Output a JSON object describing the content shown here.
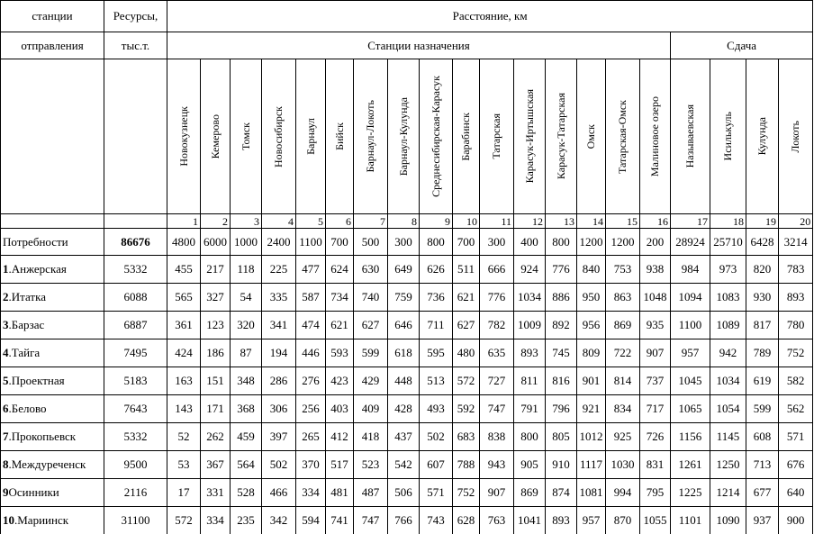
{
  "header": {
    "station": [
      "станции",
      "отправления"
    ],
    "resources": [
      "Ресурсы,",
      "тыс.т."
    ],
    "distance": "Расстояние, км",
    "destinations": "Станции назначения",
    "delivery": "Сдача"
  },
  "columns": [
    {
      "name": "Новокузнецк",
      "no": 1
    },
    {
      "name": "Кемерово",
      "no": 2
    },
    {
      "name": "Томск",
      "no": 3
    },
    {
      "name": "Новосибирск",
      "no": 4
    },
    {
      "name": "Барнаул",
      "no": 5
    },
    {
      "name": "Бийск",
      "no": 6
    },
    {
      "name": "Барнаул-Локоть",
      "no": 7
    },
    {
      "name": "Барнаул-Кулунда",
      "no": 8
    },
    {
      "name": "Среднесибирская-Карасук",
      "no": 9
    },
    {
      "name": "Барабинск",
      "no": 10
    },
    {
      "name": "Татарская",
      "no": 11
    },
    {
      "name": "Карасук-Иртышская",
      "no": 12
    },
    {
      "name": "Карасук-Татарская",
      "no": 13
    },
    {
      "name": "Омск",
      "no": 14
    },
    {
      "name": "Татарская-Омск",
      "no": 15
    },
    {
      "name": "Малиновое озеро",
      "no": 16
    },
    {
      "name": "Называевская",
      "no": 17
    },
    {
      "name": "Исилькуль",
      "no": 18
    },
    {
      "name": "Кулунда",
      "no": 19
    },
    {
      "name": "Локоть",
      "no": 20
    }
  ],
  "demand": {
    "label": "Потребности",
    "resources": 86676,
    "values": [
      4800,
      6000,
      1000,
      2400,
      1100,
      700,
      500,
      300,
      800,
      700,
      300,
      400,
      800,
      1200,
      1200,
      200,
      28924,
      25710,
      6428,
      3214
    ]
  },
  "rows": [
    {
      "num": "1",
      "name": ".Анжерская",
      "resources": 5332,
      "values": [
        455,
        217,
        118,
        225,
        477,
        624,
        630,
        649,
        626,
        511,
        666,
        924,
        776,
        840,
        753,
        938,
        984,
        973,
        820,
        783
      ]
    },
    {
      "num": "2",
      "name": ".Итатка",
      "resources": 6088,
      "values": [
        565,
        327,
        54,
        335,
        587,
        734,
        740,
        759,
        736,
        621,
        776,
        1034,
        886,
        950,
        863,
        1048,
        1094,
        1083,
        930,
        893
      ]
    },
    {
      "num": "3",
      "name": ".Барзас",
      "resources": 6887,
      "values": [
        361,
        123,
        320,
        341,
        474,
        621,
        627,
        646,
        711,
        627,
        782,
        1009,
        892,
        956,
        869,
        935,
        1100,
        1089,
        817,
        780
      ]
    },
    {
      "num": "4",
      "name": ".Тайга",
      "resources": 7495,
      "values": [
        424,
        186,
        87,
        194,
        446,
        593,
        599,
        618,
        595,
        480,
        635,
        893,
        745,
        809,
        722,
        907,
        957,
        942,
        789,
        752
      ]
    },
    {
      "num": "5",
      "name": ".Проектная",
      "resources": 5183,
      "values": [
        163,
        151,
        348,
        286,
        276,
        423,
        429,
        448,
        513,
        572,
        727,
        811,
        816,
        901,
        814,
        737,
        1045,
        1034,
        619,
        582
      ]
    },
    {
      "num": "6",
      "name": ".Белово",
      "resources": 7643,
      "values": [
        143,
        171,
        368,
        306,
        256,
        403,
        409,
        428,
        493,
        592,
        747,
        791,
        796,
        921,
        834,
        717,
        1065,
        1054,
        599,
        562
      ]
    },
    {
      "num": "7",
      "name": ".Прокопьевск",
      "resources": 5332,
      "values": [
        52,
        262,
        459,
        397,
        265,
        412,
        418,
        437,
        502,
        683,
        838,
        800,
        805,
        1012,
        925,
        726,
        1156,
        1145,
        608,
        571
      ]
    },
    {
      "num": "8",
      "name": ".Междуреченск",
      "resources": 9500,
      "values": [
        53,
        367,
        564,
        502,
        370,
        517,
        523,
        542,
        607,
        788,
        943,
        905,
        910,
        1117,
        1030,
        831,
        1261,
        1250,
        713,
        676
      ]
    },
    {
      "num": "9",
      "name": "Осинники",
      "resources": 2116,
      "values": [
        17,
        331,
        528,
        466,
        334,
        481,
        487,
        506,
        571,
        752,
        907,
        869,
        874,
        1081,
        994,
        795,
        1225,
        1214,
        677,
        640
      ]
    },
    {
      "num": "10",
      "name": ".Мариинск",
      "resources": 31100,
      "values": [
        572,
        334,
        235,
        342,
        594,
        741,
        747,
        766,
        743,
        628,
        763,
        1041,
        893,
        957,
        870,
        1055,
        1101,
        1090,
        937,
        900
      ]
    }
  ]
}
